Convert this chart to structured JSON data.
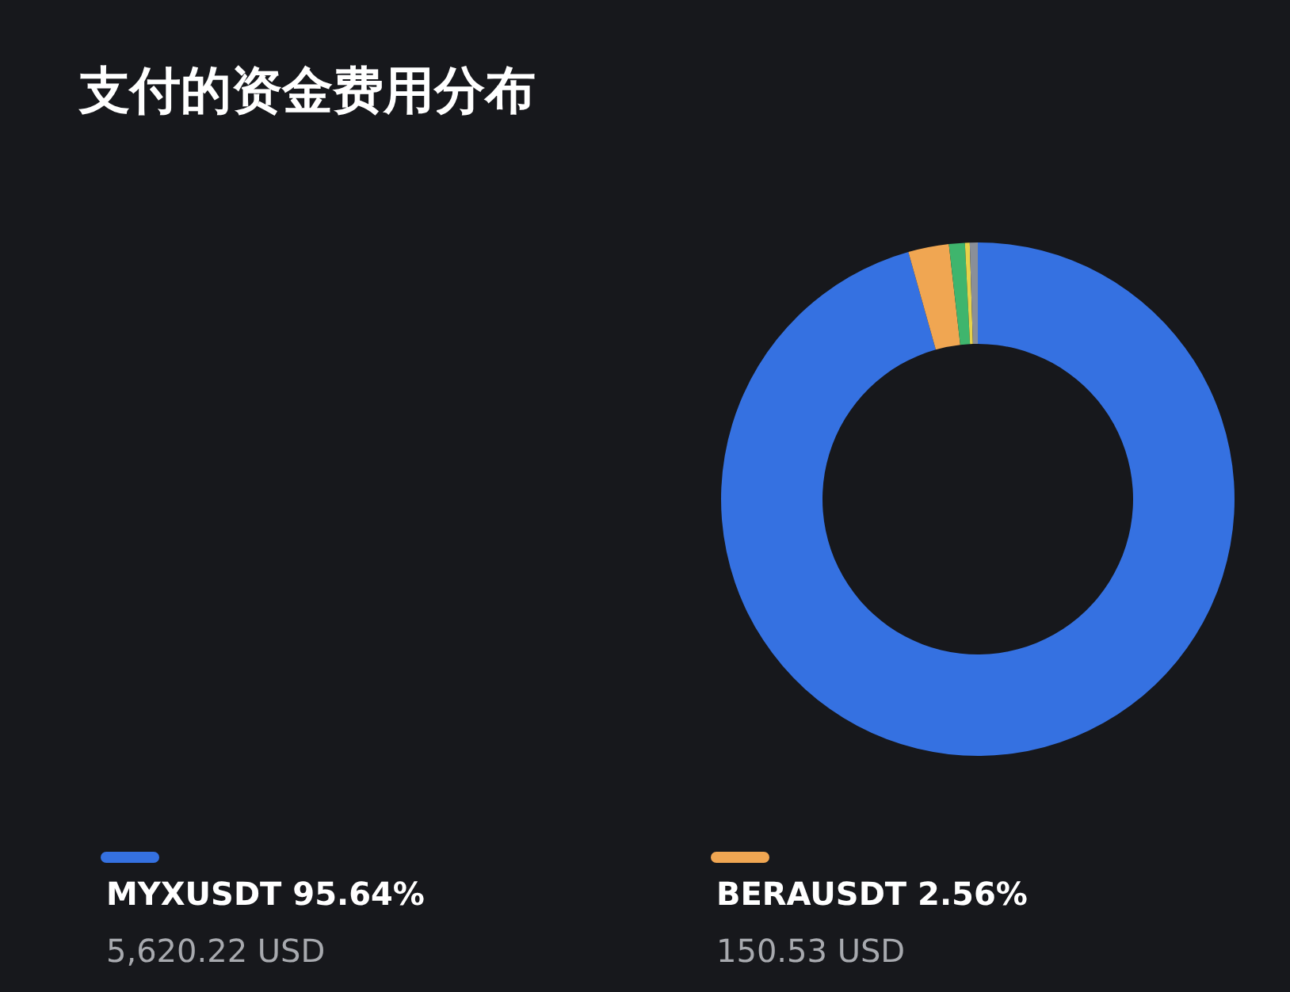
{
  "chart_data": {
    "type": "donut",
    "title": "支付的资金费用分布",
    "categories": [
      "MYXUSDT",
      "BERAUSDT",
      null,
      null,
      null
    ],
    "values": [
      95.64,
      2.56,
      1.0,
      0.3,
      0.5
    ],
    "colors": [
      "#3571e1",
      "#f0a652",
      "#3fb56d",
      "#e6d14a",
      "#8a8f98"
    ],
    "value_labels": [
      "95.64%",
      "2.56%",
      null,
      null,
      null
    ],
    "annotations": [
      "5,620.22 USD",
      "150.53 USD"
    ],
    "legend": "bottom"
  }
}
